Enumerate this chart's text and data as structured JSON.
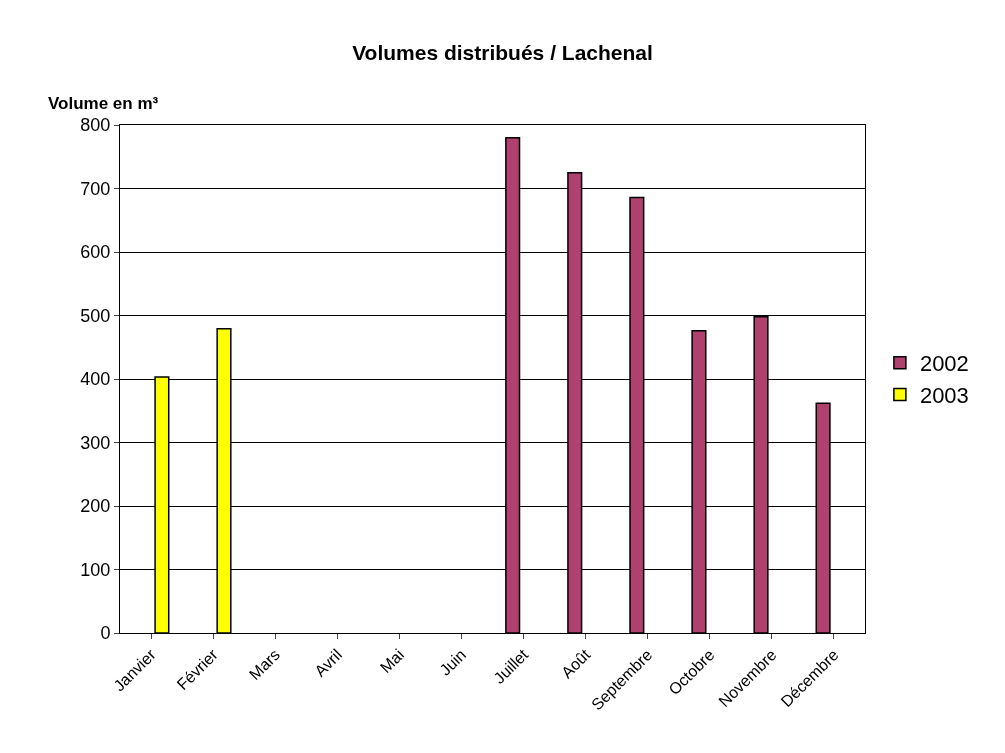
{
  "chart_data": {
    "type": "bar",
    "title": "Volumes distribués / Lachenal",
    "ylabel": "Volume en m³",
    "categories": [
      "Janvier",
      "Février",
      "Mars",
      "Avril",
      "Mai",
      "Juin",
      "Juillet",
      "Août",
      "Septembre",
      "Octobre",
      "Novembre",
      "Décembre"
    ],
    "series": [
      {
        "name": "2002",
        "color": "#b0406e",
        "values": [
          null,
          null,
          null,
          null,
          null,
          null,
          780,
          725,
          686,
          476,
          498,
          362
        ]
      },
      {
        "name": "2003",
        "color": "#ffff00",
        "values": [
          403,
          479,
          null,
          null,
          null,
          null,
          null,
          null,
          null,
          null,
          null,
          null
        ]
      }
    ],
    "ylim": [
      0,
      800
    ],
    "yticks": [
      0,
      100,
      200,
      300,
      400,
      500,
      600,
      700,
      800
    ],
    "grid": "y",
    "legend": "right"
  }
}
